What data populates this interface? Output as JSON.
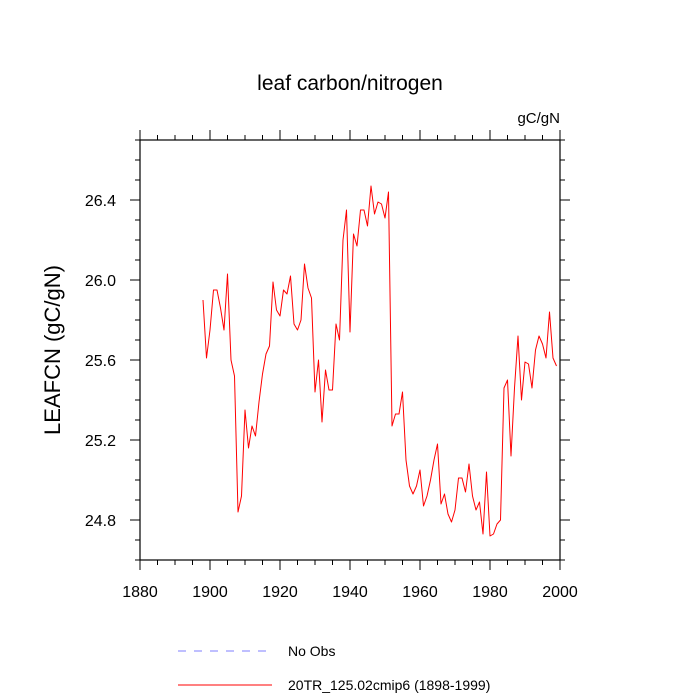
{
  "chart_data": {
    "type": "line",
    "title": "leaf carbon/nitrogen",
    "units": "gC/gN",
    "xlabel": "",
    "ylabel": "LEAFCN  (gC/gN)",
    "xlim": [
      1880,
      2000
    ],
    "ylim": [
      24.6,
      26.7
    ],
    "x_ticks": [
      1880,
      1900,
      1920,
      1940,
      1960,
      1980,
      2000
    ],
    "x_tick_labels": [
      "1880",
      "1900",
      "1920",
      "1940",
      "1960",
      "1980",
      "2000"
    ],
    "y_ticks": [
      24.8,
      25.2,
      25.6,
      26.0,
      26.4
    ],
    "y_tick_labels": [
      "24.8",
      "25.2",
      "25.6",
      "26.0",
      "26.4"
    ],
    "legend": [
      {
        "label": "No Obs",
        "color": "#7f7fff",
        "style": "dashed"
      },
      {
        "label": "20TR_125.02cmip6 (1898-1999)",
        "color": "#ff0000",
        "style": "solid"
      }
    ],
    "series": [
      {
        "name": "20TR_125.02cmip6 (1898-1999)",
        "color": "#ff0000",
        "x": [
          1898,
          1899,
          1900,
          1901,
          1902,
          1903,
          1904,
          1905,
          1906,
          1907,
          1908,
          1909,
          1910,
          1911,
          1912,
          1913,
          1914,
          1915,
          1916,
          1917,
          1918,
          1919,
          1920,
          1921,
          1922,
          1923,
          1924,
          1925,
          1926,
          1927,
          1928,
          1929,
          1930,
          1931,
          1932,
          1933,
          1934,
          1935,
          1936,
          1937,
          1938,
          1939,
          1940,
          1941,
          1942,
          1943,
          1944,
          1945,
          1946,
          1947,
          1948,
          1949,
          1950,
          1951,
          1952,
          1953,
          1954,
          1955,
          1956,
          1957,
          1958,
          1959,
          1960,
          1961,
          1962,
          1963,
          1964,
          1965,
          1966,
          1967,
          1968,
          1969,
          1970,
          1971,
          1972,
          1973,
          1974,
          1975,
          1976,
          1977,
          1978,
          1979,
          1980,
          1981,
          1982,
          1983,
          1984,
          1985,
          1986,
          1987,
          1988,
          1989,
          1990,
          1991,
          1992,
          1993,
          1994,
          1995,
          1996,
          1997,
          1998,
          1999
        ],
        "y": [
          25.9,
          25.61,
          25.75,
          25.95,
          25.95,
          25.86,
          25.75,
          26.03,
          25.6,
          25.52,
          24.84,
          24.92,
          25.35,
          25.16,
          25.27,
          25.22,
          25.39,
          25.53,
          25.63,
          25.67,
          25.99,
          25.85,
          25.82,
          25.95,
          25.93,
          26.02,
          25.78,
          25.75,
          25.8,
          26.08,
          25.96,
          25.91,
          25.44,
          25.6,
          25.29,
          25.55,
          25.45,
          25.45,
          25.78,
          25.7,
          26.2,
          26.35,
          25.74,
          26.23,
          26.17,
          26.35,
          26.35,
          26.27,
          26.47,
          26.33,
          26.39,
          26.38,
          26.31,
          26.44,
          25.27,
          25.33,
          25.33,
          25.44,
          25.1,
          24.97,
          24.93,
          24.97,
          25.05,
          24.87,
          24.92,
          25.0,
          25.1,
          25.18,
          24.88,
          24.93,
          24.83,
          24.79,
          24.85,
          25.01,
          25.01,
          24.94,
          25.08,
          24.92,
          24.85,
          24.89,
          24.73,
          25.04,
          24.72,
          24.73,
          24.78,
          24.8,
          25.46,
          25.5,
          25.12,
          25.46,
          25.72,
          25.4,
          25.59,
          25.58,
          25.46,
          25.65,
          25.72,
          25.68,
          25.61,
          25.84,
          25.61,
          25.57
        ]
      }
    ]
  }
}
